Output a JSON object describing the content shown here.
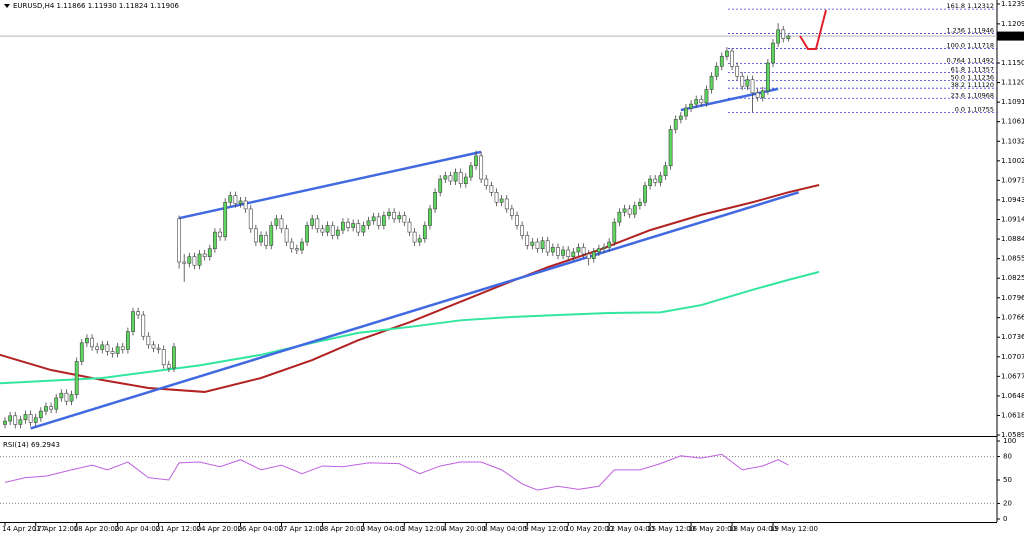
{
  "chart_data": {
    "type": "candlestick",
    "header": "EURUSD,H4 1.11866 1.11930 1.11824 1.11906",
    "up_color": "#5cd65c",
    "down_color": "#ffffff",
    "wick_color": "#444444",
    "ylim": [
      1.058,
      1.1245
    ],
    "yticks": [
      {
        "value": 1.1239,
        "label": "1.12390"
      },
      {
        "value": 1.1209,
        "label": "1.12090"
      },
      {
        "value": 1.115,
        "label": "1.11500"
      },
      {
        "value": 1.11205,
        "label": "1.11205"
      },
      {
        "value": 1.1091,
        "label": "1.10910"
      },
      {
        "value": 1.10615,
        "label": "1.10615"
      },
      {
        "value": 1.1032,
        "label": "1.10320"
      },
      {
        "value": 1.10025,
        "label": "1.10025"
      },
      {
        "value": 1.0973,
        "label": "1.09730"
      },
      {
        "value": 1.09435,
        "label": "1.09435"
      },
      {
        "value": 1.0914,
        "label": "1.09140"
      },
      {
        "value": 1.08845,
        "label": "1.08845"
      },
      {
        "value": 1.0855,
        "label": "1.08550"
      },
      {
        "value": 1.08255,
        "label": "1.08255"
      },
      {
        "value": 1.0796,
        "label": "1.07960"
      },
      {
        "value": 1.0766,
        "label": "1.07660"
      },
      {
        "value": 1.07365,
        "label": "1.07365"
      },
      {
        "value": 1.0707,
        "label": "1.07070"
      },
      {
        "value": 1.06775,
        "label": "1.06775"
      },
      {
        "value": 1.0648,
        "label": "1.06480"
      },
      {
        "value": 1.06185,
        "label": "1.06185"
      },
      {
        "value": 1.0589,
        "label": "1.05890"
      }
    ],
    "last_price": 1.11906,
    "categories": [
      "14 Apr 2017",
      null,
      null,
      null,
      null,
      null,
      "17 Apr 12:00",
      null,
      null,
      null,
      null,
      null,
      null,
      null,
      "18 Apr 20:00",
      null,
      null,
      null,
      null,
      null,
      null,
      null,
      "20 Apr 04:00",
      null,
      null,
      null,
      null,
      null,
      null,
      null,
      "21 Apr 12:00",
      null,
      null,
      null,
      null,
      null,
      null,
      null,
      "24 Apr 20:00",
      null,
      null,
      null,
      null,
      null,
      null,
      null,
      "26 Apr 04:00",
      null,
      null,
      null,
      null,
      null,
      null,
      null,
      "27 Apr 12:00",
      null,
      null,
      null,
      null,
      null,
      null,
      null,
      "28 Apr 20:00",
      null,
      null,
      null,
      null,
      null,
      null,
      null,
      "2 May 04:00",
      null,
      null,
      null,
      null,
      null,
      null,
      null,
      "3 May 12:00",
      null,
      null,
      null,
      null,
      null,
      null,
      null,
      "4 May 20:00",
      null,
      null,
      null,
      null,
      null,
      null,
      null,
      "8 May 04:00",
      null,
      null,
      null,
      null,
      null,
      null,
      null,
      "9 May 12:00",
      null,
      null,
      null,
      null,
      null,
      null,
      null,
      "10 May 20:00",
      null,
      null,
      null,
      null,
      null,
      null,
      null,
      "12 May 04:00",
      null,
      null,
      null,
      null,
      null,
      null,
      null,
      "15 May 12:00",
      null,
      null,
      null,
      null,
      null,
      null,
      null,
      "16 May 20:00",
      null,
      null,
      null,
      null,
      null,
      null,
      null,
      "18 May 04:00",
      null,
      null,
      null,
      null,
      null,
      null,
      null,
      "19 May 12:00",
      null,
      null,
      null
    ],
    "ohlc": [
      [
        1.0605,
        1.0616,
        1.0599,
        1.061
      ],
      [
        1.061,
        1.0624,
        1.0604,
        1.0618
      ],
      [
        1.0618,
        1.0624,
        1.0599,
        1.0605
      ],
      [
        1.0605,
        1.0618,
        1.0599,
        1.0612
      ],
      [
        1.0612,
        1.0626,
        1.0606,
        1.062
      ],
      [
        1.062,
        1.0626,
        1.0602,
        1.0608
      ],
      [
        1.0608,
        1.0621,
        1.0602,
        1.0615
      ],
      [
        1.0615,
        1.0631,
        1.0609,
        1.0625
      ],
      [
        1.0625,
        1.0638,
        1.0619,
        1.0632
      ],
      [
        1.0632,
        1.0638,
        1.0622,
        1.0628
      ],
      [
        1.0628,
        1.0651,
        1.0622,
        1.0645
      ],
      [
        1.0645,
        1.0658,
        1.0639,
        1.0652
      ],
      [
        1.0652,
        1.0658,
        1.0634,
        1.064
      ],
      [
        1.064,
        1.0656,
        1.0634,
        1.065
      ],
      [
        1.065,
        1.0706,
        1.0644,
        1.07
      ],
      [
        1.07,
        1.0734,
        1.0694,
        1.0728
      ],
      [
        1.0728,
        1.0741,
        1.0722,
        1.0735
      ],
      [
        1.0735,
        1.0741,
        1.0716,
        1.0722
      ],
      [
        1.0722,
        1.0728,
        1.0712,
        1.0718
      ],
      [
        1.0718,
        1.0731,
        1.0712,
        1.0725
      ],
      [
        1.0725,
        1.0731,
        1.0709,
        1.0715
      ],
      [
        1.0715,
        1.0721,
        1.0706,
        1.0712
      ],
      [
        1.0712,
        1.0728,
        1.0706,
        1.0722
      ],
      [
        1.0722,
        1.0728,
        1.0712,
        1.0718
      ],
      [
        1.0718,
        1.0751,
        1.0712,
        1.0745
      ],
      [
        1.0745,
        1.0781,
        1.0739,
        1.0775
      ],
      [
        1.0775,
        1.0781,
        1.0764,
        1.077
      ],
      [
        1.077,
        1.0776,
        1.0732,
        1.0738
      ],
      [
        1.0738,
        1.0744,
        1.0719,
        1.0725
      ],
      [
        1.0725,
        1.0731,
        1.0714,
        1.072
      ],
      [
        1.072,
        1.0726,
        1.0712,
        1.0718
      ],
      [
        1.0718,
        1.0724,
        1.0689,
        1.0695
      ],
      [
        1.0695,
        1.0701,
        1.0684,
        1.069
      ],
      [
        1.069,
        1.0728,
        1.0684,
        1.0722
      ],
      [
        1.0915,
        1.092,
        1.084,
        1.085
      ],
      [
        1.085,
        1.0862,
        1.082,
        1.0848
      ],
      [
        1.0848,
        1.0864,
        1.0842,
        1.0858
      ],
      [
        1.0858,
        1.0864,
        1.0839,
        1.0845
      ],
      [
        1.0845,
        1.0868,
        1.0839,
        1.0862
      ],
      [
        1.0862,
        1.0868,
        1.0852,
        1.0858
      ],
      [
        1.0858,
        1.0876,
        1.0852,
        1.087
      ],
      [
        1.087,
        1.0901,
        1.0864,
        1.0895
      ],
      [
        1.0895,
        1.0901,
        1.0882,
        1.0888
      ],
      [
        1.0888,
        1.0946,
        1.0882,
        1.094
      ],
      [
        1.094,
        1.0956,
        1.0934,
        1.095
      ],
      [
        1.095,
        1.0956,
        1.0932,
        1.0938
      ],
      [
        1.0938,
        1.0948,
        1.0932,
        1.0942
      ],
      [
        1.0942,
        1.0948,
        1.0924,
        1.093
      ],
      [
        1.093,
        1.0936,
        1.0894,
        1.09
      ],
      [
        1.09,
        1.0906,
        1.0874,
        1.088
      ],
      [
        1.088,
        1.0896,
        1.0874,
        1.089
      ],
      [
        1.089,
        1.0896,
        1.0869,
        1.0875
      ],
      [
        1.0875,
        1.0911,
        1.0869,
        1.0905
      ],
      [
        1.0905,
        1.0921,
        1.0899,
        1.0915
      ],
      [
        1.0915,
        1.0921,
        1.0894,
        1.09
      ],
      [
        1.09,
        1.0906,
        1.0874,
        1.088
      ],
      [
        1.088,
        1.0886,
        1.0864,
        1.087
      ],
      [
        1.087,
        1.0876,
        1.0862,
        1.0868
      ],
      [
        1.0868,
        1.0886,
        1.0862,
        1.088
      ],
      [
        1.088,
        1.0911,
        1.0874,
        1.0905
      ],
      [
        1.0905,
        1.0921,
        1.0899,
        1.0915
      ],
      [
        1.0915,
        1.0921,
        1.0894,
        1.09
      ],
      [
        1.09,
        1.0906,
        1.0889,
        1.0895
      ],
      [
        1.0895,
        1.0911,
        1.0889,
        1.0905
      ],
      [
        1.0905,
        1.0911,
        1.0884,
        1.089
      ],
      [
        1.089,
        1.0904,
        1.0884,
        1.0898
      ],
      [
        1.0898,
        1.0916,
        1.0892,
        1.091
      ],
      [
        1.091,
        1.0916,
        1.0896,
        1.0902
      ],
      [
        1.0902,
        1.0914,
        1.0896,
        1.0908
      ],
      [
        1.0908,
        1.0914,
        1.0889,
        1.0895
      ],
      [
        1.0895,
        1.0911,
        1.0889,
        1.0905
      ],
      [
        1.0905,
        1.0918,
        1.0899,
        1.0912
      ],
      [
        1.0912,
        1.0924,
        1.0906,
        1.0918
      ],
      [
        1.0918,
        1.0924,
        1.0899,
        1.0905
      ],
      [
        1.0905,
        1.0926,
        1.0899,
        1.092
      ],
      [
        1.092,
        1.0931,
        1.0914,
        1.0925
      ],
      [
        1.0925,
        1.0931,
        1.0909,
        1.0915
      ],
      [
        1.0915,
        1.0926,
        1.0909,
        1.092
      ],
      [
        1.092,
        1.0926,
        1.0904,
        1.091
      ],
      [
        1.091,
        1.0916,
        1.0889,
        1.0895
      ],
      [
        1.0895,
        1.0901,
        1.0874,
        1.088
      ],
      [
        1.088,
        1.0891,
        1.0874,
        1.0885
      ],
      [
        1.0885,
        1.0911,
        1.0879,
        1.0905
      ],
      [
        1.0905,
        1.0936,
        1.0899,
        1.093
      ],
      [
        1.093,
        1.0961,
        1.0924,
        1.0955
      ],
      [
        1.0955,
        1.0981,
        1.0949,
        1.0975
      ],
      [
        1.0975,
        1.0986,
        1.0969,
        1.098
      ],
      [
        1.098,
        1.0986,
        1.0966,
        1.0972
      ],
      [
        1.0972,
        1.0991,
        1.0966,
        1.0985
      ],
      [
        1.0985,
        1.0991,
        1.0962,
        1.0968
      ],
      [
        1.0968,
        1.0984,
        1.0962,
        1.0978
      ],
      [
        1.0978,
        1.1001,
        1.0972,
        1.0995
      ],
      [
        1.0995,
        1.1018,
        1.0989,
        1.101
      ],
      [
        1.101,
        1.1016,
        1.0969,
        1.0975
      ],
      [
        1.0975,
        1.0981,
        1.0959,
        1.0965
      ],
      [
        1.0965,
        1.0971,
        1.0949,
        1.0955
      ],
      [
        1.0955,
        1.0961,
        1.0934,
        1.094
      ],
      [
        1.094,
        1.0951,
        1.0934,
        1.0945
      ],
      [
        1.0945,
        1.0951,
        1.0924,
        1.093
      ],
      [
        1.093,
        1.0936,
        1.0914,
        1.092
      ],
      [
        1.092,
        1.0926,
        1.0899,
        1.0905
      ],
      [
        1.0905,
        1.0911,
        1.0884,
        1.089
      ],
      [
        1.089,
        1.0896,
        1.0869,
        1.0875
      ],
      [
        1.0875,
        1.0886,
        1.0869,
        1.088
      ],
      [
        1.088,
        1.0886,
        1.0864,
        1.087
      ],
      [
        1.087,
        1.0888,
        1.0864,
        1.0882
      ],
      [
        1.0882,
        1.0888,
        1.0859,
        1.0865
      ],
      [
        1.0865,
        1.0878,
        1.0859,
        1.0872
      ],
      [
        1.0872,
        1.0878,
        1.0854,
        1.086
      ],
      [
        1.086,
        1.0874,
        1.0854,
        1.0868
      ],
      [
        1.0868,
        1.0874,
        1.0852,
        1.0858
      ],
      [
        1.0858,
        1.0871,
        1.0852,
        1.0865
      ],
      [
        1.0865,
        1.0878,
        1.0859,
        1.0872
      ],
      [
        1.0872,
        1.0878,
        1.0856,
        1.0862
      ],
      [
        1.0862,
        1.0868,
        1.0845,
        1.0855
      ],
      [
        1.0855,
        1.0871,
        1.0849,
        1.0865
      ],
      [
        1.0865,
        1.0876,
        1.0859,
        1.087
      ],
      [
        1.087,
        1.0878,
        1.0864,
        1.0872
      ],
      [
        1.0872,
        1.0886,
        1.0866,
        1.088
      ],
      [
        1.088,
        1.0916,
        1.0874,
        1.091
      ],
      [
        1.091,
        1.0931,
        1.0904,
        1.0925
      ],
      [
        1.0925,
        1.0936,
        1.0919,
        1.093
      ],
      [
        1.093,
        1.0936,
        1.0916,
        1.0922
      ],
      [
        1.0922,
        1.0941,
        1.0916,
        1.0935
      ],
      [
        1.0935,
        1.0946,
        1.0929,
        1.094
      ],
      [
        1.094,
        1.0971,
        1.0934,
        1.0965
      ],
      [
        1.0965,
        1.0981,
        1.0959,
        1.0975
      ],
      [
        1.0975,
        1.0981,
        1.0964,
        1.097
      ],
      [
        1.097,
        1.0986,
        1.0964,
        1.098
      ],
      [
        1.098,
        1.1001,
        1.0974,
        1.0995
      ],
      [
        1.0995,
        1.1056,
        1.0989,
        1.105
      ],
      [
        1.105,
        1.1071,
        1.1044,
        1.1065
      ],
      [
        1.1065,
        1.1076,
        1.1059,
        1.107
      ],
      [
        1.107,
        1.1088,
        1.1064,
        1.1082
      ],
      [
        1.1082,
        1.1094,
        1.1076,
        1.1088
      ],
      [
        1.1088,
        1.1101,
        1.1082,
        1.1095
      ],
      [
        1.1095,
        1.1101,
        1.1084,
        1.109
      ],
      [
        1.109,
        1.1116,
        1.1084,
        1.111
      ],
      [
        1.111,
        1.1136,
        1.1104,
        1.113
      ],
      [
        1.113,
        1.1151,
        1.1124,
        1.1145
      ],
      [
        1.1145,
        1.1166,
        1.1139,
        1.116
      ],
      [
        1.116,
        1.1174,
        1.1154,
        1.1168
      ],
      [
        1.1168,
        1.1172,
        1.1139,
        1.1145
      ],
      [
        1.1145,
        1.1151,
        1.1124,
        1.113
      ],
      [
        1.113,
        1.1136,
        1.1109,
        1.1115
      ],
      [
        1.1115,
        1.1131,
        1.1109,
        1.1125
      ],
      [
        1.1125,
        1.1131,
        1.1076,
        1.1105
      ],
      [
        1.1105,
        1.1111,
        1.1092,
        1.1098
      ],
      [
        1.1098,
        1.1114,
        1.1092,
        1.1108
      ],
      [
        1.1108,
        1.1156,
        1.1102,
        1.115
      ],
      [
        1.115,
        1.1186,
        1.1144,
        1.118
      ],
      [
        1.118,
        1.121,
        1.1174,
        1.12
      ],
      [
        1.12,
        1.1206,
        1.1181,
        1.1187
      ],
      [
        1.11866,
        1.1193,
        1.11824,
        1.11906
      ]
    ],
    "series": [
      {
        "color": "#b22222",
        "x": [
          -1,
          9,
          19,
          28,
          39,
          50,
          60,
          69,
          79,
          89,
          97,
          106,
          116,
          126,
          136,
          146,
          153,
          159
        ],
        "values": [
          1.071,
          1.0687,
          1.0672,
          1.066,
          1.0654,
          1.0675,
          1.0702,
          1.0732,
          1.0759,
          1.079,
          1.0815,
          1.0842,
          1.0868,
          1.0898,
          1.0921,
          1.094,
          1.0955,
          1.0966
        ]
      },
      {
        "color": "#33e6a0",
        "x": [
          -1,
          19,
          28,
          38,
          50,
          60,
          69,
          79,
          89,
          99,
          108,
          118,
          128,
          136,
          146,
          153,
          159
        ],
        "values": [
          1.0667,
          1.0675,
          1.0684,
          1.0694,
          1.071,
          1.0728,
          1.0743,
          1.0752,
          1.0762,
          1.0767,
          1.077,
          1.0773,
          1.0774,
          1.0785,
          1.0808,
          1.0823,
          1.0835
        ]
      }
    ],
    "trendlines_color": "#4169e1",
    "trendlines": [
      {
        "x": [
          34,
          93
        ],
        "values": [
          1.0916,
          1.1016
        ]
      },
      {
        "x": [
          5,
          155
        ],
        "values": [
          1.0599,
          1.0955
        ]
      },
      {
        "x": [
          132,
          151
        ],
        "values": [
          1.1079,
          1.1111
        ]
      }
    ],
    "fib_color": "#3b3bd6",
    "fib_levels": [
      {
        "value": 1.12312,
        "label": "161.8 1.12312"
      },
      {
        "value": 1.11946,
        "label": "1.236 1.11946"
      },
      {
        "value": 1.11718,
        "label": "100.0 1.11718"
      },
      {
        "value": 1.11492,
        "label": "0.764 1.11492"
      },
      {
        "value": 1.11357,
        "label": "61.8 1.11357"
      },
      {
        "value": 1.11236,
        "label": "50.0 1.11236"
      },
      {
        "value": 1.1112,
        "label": "38.2 1.11120"
      },
      {
        "value": 1.10968,
        "label": "23.6 1.10968"
      },
      {
        "value": 1.10755,
        "label": "0.0 1.10755"
      }
    ],
    "rsi": {
      "label": "RSI(14) 69.2943",
      "color": "#c060e0",
      "ylim": [
        0,
        100
      ],
      "yticks": [
        100,
        80,
        50,
        20,
        0
      ],
      "levels": [
        80,
        20
      ],
      "x": [
        0,
        4,
        8,
        13,
        17,
        20,
        24,
        28,
        32,
        34,
        38,
        42,
        46,
        50,
        54,
        58,
        62,
        66,
        71,
        77,
        81,
        85,
        89,
        93,
        97,
        101,
        104,
        108,
        112,
        116,
        119,
        124,
        128,
        132,
        136,
        140,
        144,
        148,
        151,
        153
      ],
      "values": [
        47,
        53,
        55,
        63,
        69,
        63,
        73,
        53,
        50,
        72,
        73,
        67,
        76,
        63,
        69,
        58,
        68,
        67,
        72,
        71,
        58,
        68,
        73,
        73,
        63,
        45,
        37,
        42,
        38,
        42,
        63,
        63,
        71,
        81,
        78,
        83,
        63,
        68,
        76,
        69.2943
      ]
    }
  }
}
